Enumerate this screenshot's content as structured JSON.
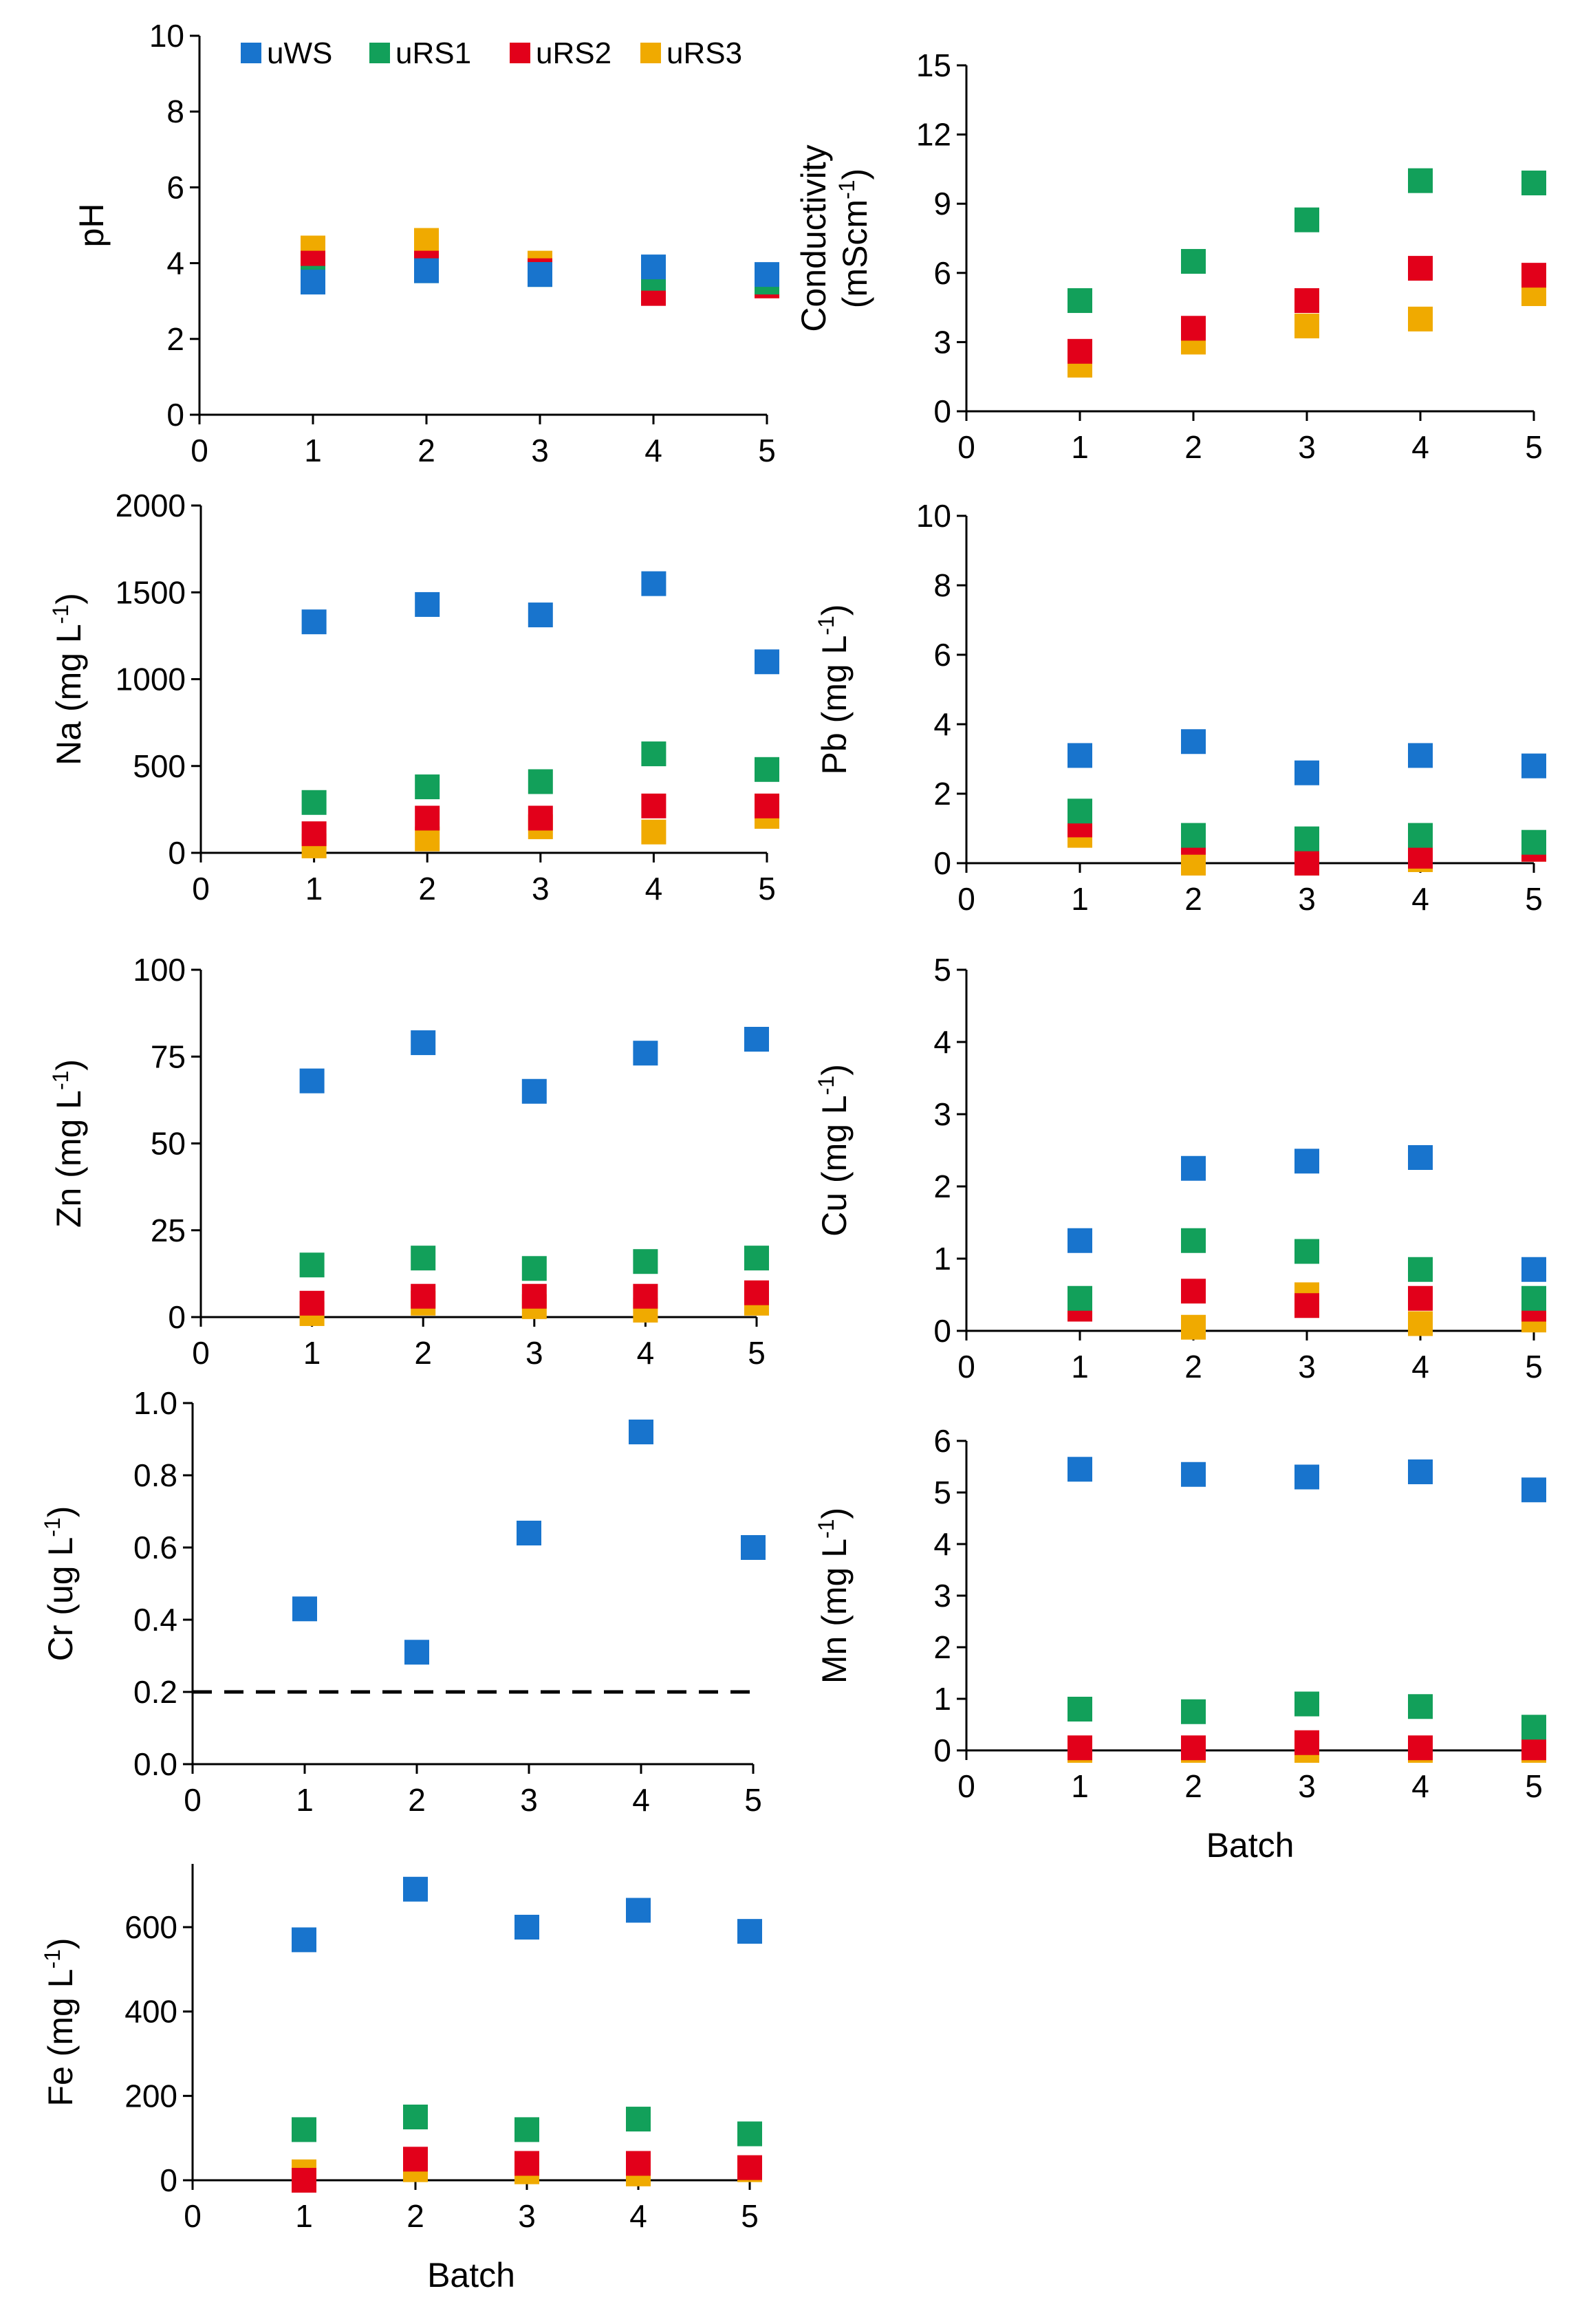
{
  "legend": [
    {
      "name": "uWS",
      "color": "#1874CD"
    },
    {
      "name": "uRS1",
      "color": "#12A05A"
    },
    {
      "name": "uRS2",
      "color": "#E2001A"
    },
    {
      "name": "uRS3",
      "color": "#F0AA00"
    }
  ],
  "chart_data": [
    {
      "type": "scatter",
      "id": "ph",
      "ylabel": "pH",
      "ylabel_super": "",
      "xlabel": "",
      "xlim": [
        0,
        5
      ],
      "ylim": [
        0,
        10
      ],
      "x_ticks": [
        "0",
        "1",
        "2",
        "3",
        "4",
        "5"
      ],
      "y_ticks": [
        "0",
        "2",
        "4",
        "6",
        "8",
        "10"
      ],
      "series": [
        {
          "name": "uWS",
          "values": [
            3.5,
            3.8,
            3.7,
            3.9,
            3.7
          ]
        },
        {
          "name": "uRS1",
          "values": [
            3.6,
            3.8,
            3.7,
            3.6,
            3.5
          ]
        },
        {
          "name": "uRS2",
          "values": [
            4.0,
            4.0,
            3.8,
            3.2,
            3.4
          ]
        },
        {
          "name": "uRS3",
          "values": [
            4.4,
            4.6,
            4.0,
            3.6,
            3.4
          ]
        }
      ]
    },
    {
      "type": "scatter",
      "id": "conductivity",
      "ylabel": "Conductivity",
      "ylabel2": "(mScm",
      "ylabel2_super": "-1",
      "ylabel2_end": ")",
      "xlabel": "",
      "xlim": [
        0,
        5
      ],
      "ylim": [
        0,
        15
      ],
      "x_ticks": [
        "0",
        "1",
        "2",
        "3",
        "4",
        "5"
      ],
      "y_ticks": [
        "0",
        "3",
        "6",
        "9",
        "12",
        "15"
      ],
      "series": [
        {
          "name": "uWS",
          "values": [
            null,
            null,
            null,
            null,
            null
          ]
        },
        {
          "name": "uRS1",
          "values": [
            4.8,
            6.5,
            8.3,
            10.0,
            9.9
          ]
        },
        {
          "name": "uRS2",
          "values": [
            2.6,
            3.6,
            4.8,
            6.2,
            5.9
          ]
        },
        {
          "name": "uRS3",
          "values": [
            2.0,
            3.0,
            3.7,
            4.0,
            5.1
          ]
        }
      ]
    },
    {
      "type": "scatter",
      "id": "na",
      "ylabel": "Na (mg L",
      "ylabel_super": "-1",
      "ylabel_end": ")",
      "xlabel": "",
      "xlim": [
        0,
        5
      ],
      "ylim": [
        0,
        2000
      ],
      "x_ticks": [
        "0",
        "1",
        "2",
        "3",
        "4",
        "5"
      ],
      "y_ticks": [
        "0",
        "500",
        "1000",
        "1500",
        "2000"
      ],
      "series": [
        {
          "name": "uWS",
          "values": [
            1330,
            1430,
            1370,
            1550,
            1100
          ]
        },
        {
          "name": "uRS1",
          "values": [
            290,
            380,
            410,
            570,
            480
          ]
        },
        {
          "name": "uRS2",
          "values": [
            110,
            200,
            200,
            270,
            270
          ]
        },
        {
          "name": "uRS3",
          "values": [
            40,
            80,
            150,
            120,
            210
          ]
        }
      ]
    },
    {
      "type": "scatter",
      "id": "pb",
      "ylabel": "Pb (mg L",
      "ylabel_super": "-1",
      "ylabel_end": ")",
      "xlabel": "",
      "xlim": [
        0,
        5
      ],
      "ylim": [
        0,
        10
      ],
      "x_ticks": [
        "0",
        "1",
        "2",
        "3",
        "4",
        "5"
      ],
      "y_ticks": [
        "0",
        "2",
        "4",
        "6",
        "8",
        "10"
      ],
      "series": [
        {
          "name": "uWS",
          "values": [
            3.1,
            3.5,
            2.6,
            3.1,
            2.8
          ]
        },
        {
          "name": "uRS1",
          "values": [
            1.5,
            0.8,
            0.7,
            0.8,
            0.6
          ]
        },
        {
          "name": "uRS2",
          "values": [
            1.1,
            0.6,
            0.0,
            0.2,
            0.4
          ]
        },
        {
          "name": "uRS3",
          "values": [
            0.8,
            0.0,
            0.4,
            0.1,
            0.4
          ]
        }
      ]
    },
    {
      "type": "scatter",
      "id": "zn",
      "ylabel": "Zn (mg L",
      "ylabel_super": "-1",
      "ylabel_end": ")",
      "xlabel": "",
      "xlim": [
        0,
        5
      ],
      "ylim": [
        0,
        100
      ],
      "x_ticks": [
        "0",
        "1",
        "2",
        "3",
        "4",
        "5"
      ],
      "y_ticks": [
        "0",
        "25",
        "50",
        "75",
        "100"
      ],
      "series": [
        {
          "name": "uWS",
          "values": [
            68,
            79,
            65,
            76,
            80
          ]
        },
        {
          "name": "uRS1",
          "values": [
            15,
            17,
            14,
            16,
            17
          ]
        },
        {
          "name": "uRS2",
          "values": [
            4,
            6,
            6,
            6,
            7
          ]
        },
        {
          "name": "uRS3",
          "values": [
            1,
            4,
            3,
            2,
            4
          ]
        }
      ]
    },
    {
      "type": "scatter",
      "id": "cu",
      "ylabel": "Cu (mg L",
      "ylabel_super": "-1",
      "ylabel_end": ")",
      "xlabel": "",
      "xlim": [
        0,
        5
      ],
      "ylim": [
        0,
        5
      ],
      "x_ticks": [
        "0",
        "1",
        "2",
        "3",
        "4",
        "5"
      ],
      "y_ticks": [
        "0",
        "1",
        "2",
        "3",
        "4",
        "5"
      ],
      "series": [
        {
          "name": "uWS",
          "values": [
            1.25,
            2.25,
            2.35,
            2.4,
            0.85
          ]
        },
        {
          "name": "uRS1",
          "values": [
            0.45,
            1.25,
            1.1,
            0.85,
            0.45
          ]
        },
        {
          "name": "uRS2",
          "values": [
            0.3,
            0.55,
            0.35,
            0.45,
            0.3
          ]
        },
        {
          "name": "uRS3",
          "values": [
            0.4,
            0.05,
            0.5,
            0.1,
            0.15
          ]
        }
      ]
    },
    {
      "type": "scatter",
      "id": "cr",
      "ylabel": "Cr (ug L",
      "ylabel_super": "-1",
      "ylabel_end": ")",
      "xlabel": "",
      "xlim": [
        0,
        5
      ],
      "ylim": [
        0,
        1.0
      ],
      "x_ticks": [
        "0",
        "1",
        "2",
        "3",
        "4",
        "5"
      ],
      "y_ticks": [
        "0.0",
        "0.2",
        "0.4",
        "0.6",
        "0.8",
        "1.0"
      ],
      "reference_line": 0.2,
      "series": [
        {
          "name": "uWS",
          "values": [
            0.43,
            0.31,
            0.64,
            0.92,
            0.6
          ]
        }
      ]
    },
    {
      "type": "scatter",
      "id": "mn",
      "ylabel": "Mn  (mg L",
      "ylabel_super": "-1",
      "ylabel_end": ")",
      "xlabel": "Batch",
      "xlim": [
        0,
        5
      ],
      "ylim": [
        0,
        6
      ],
      "x_ticks": [
        "0",
        "1",
        "2",
        "3",
        "4",
        "5"
      ],
      "y_ticks": [
        "0",
        "1",
        "2",
        "3",
        "4",
        "5",
        "6"
      ],
      "series": [
        {
          "name": "uWS",
          "values": [
            5.45,
            5.35,
            5.3,
            5.4,
            5.05
          ]
        },
        {
          "name": "uRS1",
          "values": [
            0.8,
            0.75,
            0.9,
            0.85,
            0.45
          ]
        },
        {
          "name": "uRS2",
          "values": [
            0.05,
            0.05,
            0.15,
            0.05,
            0.05
          ]
        },
        {
          "name": "uRS3",
          "values": [
            0.0,
            0.0,
            0.0,
            0.0,
            0.0
          ]
        }
      ]
    },
    {
      "type": "scatter",
      "id": "fe",
      "ylabel": "Fe (mg L",
      "ylabel_super": "-1",
      "ylabel_end": ")",
      "xlabel": "Batch",
      "xlim": [
        0,
        5
      ],
      "ylim": [
        0,
        750
      ],
      "x_ticks": [
        "0",
        "1",
        "2",
        "3",
        "4",
        "5"
      ],
      "y_ticks": [
        "0",
        "200",
        "400",
        "600"
      ],
      "series": [
        {
          "name": "uWS",
          "values": [
            570,
            690,
            600,
            640,
            590
          ]
        },
        {
          "name": "uRS1",
          "values": [
            120,
            150,
            120,
            145,
            110
          ]
        },
        {
          "name": "uRS2",
          "values": [
            0,
            50,
            40,
            40,
            30
          ]
        },
        {
          "name": "uRS3",
          "values": [
            20,
            25,
            20,
            15,
            25
          ]
        }
      ]
    }
  ]
}
